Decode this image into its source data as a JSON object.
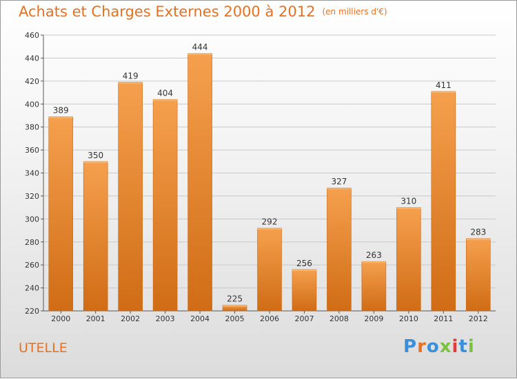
{
  "title": "Achats et Charges Externes 2000 à 2012",
  "unit": "(en milliers d'€)",
  "place": "UTELLE",
  "logo": {
    "text": "Proxiti",
    "colors": [
      "#3a8fd8",
      "#e8701e",
      "#3a8fd8",
      "#7cc242",
      "#e23b3b",
      "#3a8fd8",
      "#7cc242"
    ]
  },
  "colors": {
    "bar_light": "#f5a04e",
    "bar_dark": "#d06c15",
    "accent": "#e8701e"
  },
  "chart_data": {
    "type": "bar",
    "categories": [
      "2000",
      "2001",
      "2002",
      "2003",
      "2004",
      "2005",
      "2006",
      "2007",
      "2008",
      "2009",
      "2010",
      "2011",
      "2012"
    ],
    "values": [
      389,
      350,
      419,
      404,
      444,
      225,
      292,
      256,
      327,
      263,
      310,
      411,
      283
    ],
    "ylim": [
      220,
      460
    ],
    "yticks": [
      220,
      240,
      260,
      280,
      300,
      320,
      340,
      360,
      380,
      400,
      420,
      440,
      460
    ],
    "grid": true
  }
}
